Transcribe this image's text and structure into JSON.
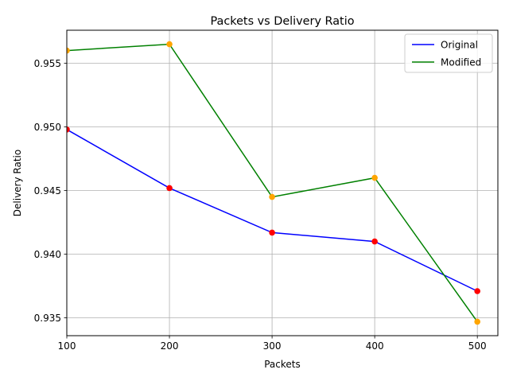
{
  "colors": {
    "original_line": "#0000ff",
    "modified_line": "#008000",
    "original_marker": "#ff0000",
    "modified_marker": "#ffa500",
    "grid": "#b0b0b0",
    "axes": "#000000"
  },
  "chart_data": {
    "type": "line",
    "title": "Packets vs Delivery Ratio",
    "xlabel": "Packets",
    "ylabel": "Delivery Ratio",
    "x": [
      100,
      200,
      300,
      400,
      500
    ],
    "xlim": [
      100,
      520
    ],
    "ylim": [
      0.9336,
      0.9576
    ],
    "xticks": [
      100,
      200,
      300,
      400,
      500
    ],
    "xtick_labels": [
      "100",
      "200",
      "300",
      "400",
      "500"
    ],
    "yticks": [
      0.935,
      0.94,
      0.945,
      0.95,
      0.955
    ],
    "ytick_labels": [
      "0.935",
      "0.940",
      "0.945",
      "0.950",
      "0.955"
    ],
    "grid": true,
    "legend": "top-right",
    "series": [
      {
        "name": "Original",
        "values": [
          0.9498,
          0.9452,
          0.9417,
          0.941,
          0.9371
        ],
        "line_color": "#0000ff",
        "marker_color": "#ff0000"
      },
      {
        "name": "Modified",
        "values": [
          0.956,
          0.9565,
          0.9445,
          0.946,
          0.9347
        ],
        "line_color": "#008000",
        "marker_color": "#ffa500"
      }
    ]
  }
}
